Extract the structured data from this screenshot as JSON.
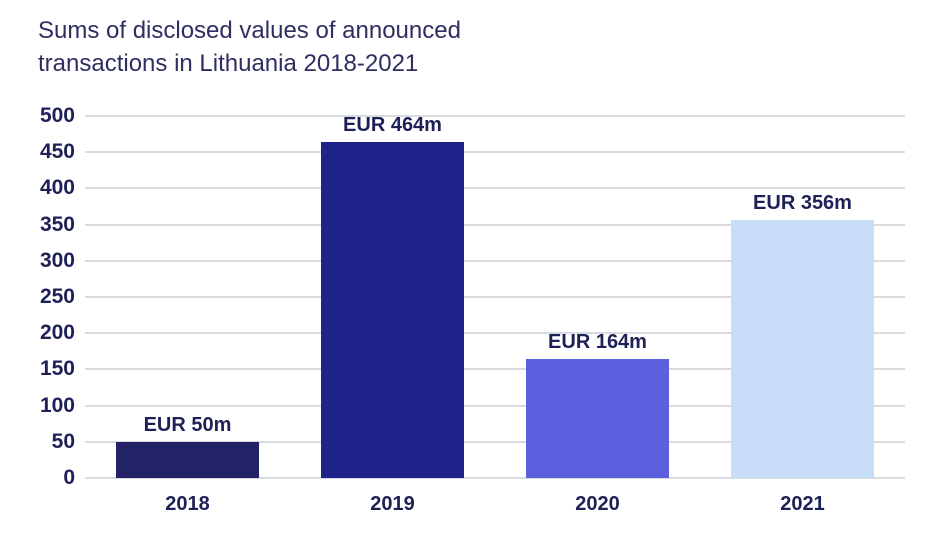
{
  "chart_data": {
    "type": "bar",
    "title": "Sums of disclosed values of announced transactions in Lithuania 2018-2021",
    "categories": [
      "2018",
      "2019",
      "2020",
      "2021"
    ],
    "values": [
      50,
      464,
      164,
      356
    ],
    "value_labels": [
      "EUR 50m",
      "EUR 464m",
      "EUR 164m",
      "EUR 356m"
    ],
    "bar_colors": [
      "#232266",
      "#1f2288",
      "#5c60de",
      "#c8def8"
    ],
    "xlabel": "",
    "ylabel": "",
    "ylim": [
      0,
      500
    ],
    "yticks": [
      0,
      50,
      100,
      150,
      200,
      250,
      300,
      350,
      400,
      450,
      500
    ],
    "grid": "horizontal",
    "legend": "none",
    "colors": {
      "title_text": "#2f2e62",
      "axis_text": "#1e2157",
      "gridline": "#d9dbe3",
      "background": "#ffffff"
    }
  }
}
